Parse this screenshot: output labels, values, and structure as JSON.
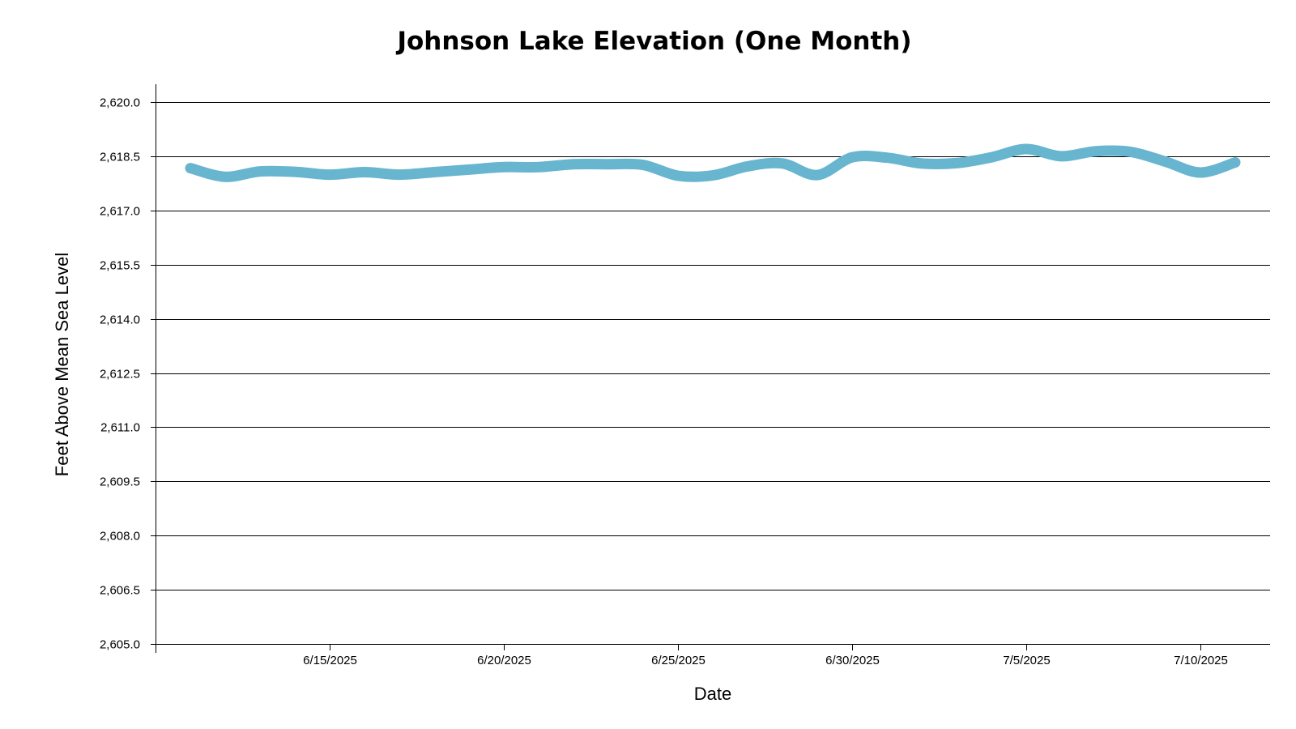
{
  "chart_data": {
    "type": "line",
    "title": "Johnson Lake Elevation (One Month)",
    "xlabel": "Date",
    "ylabel": "Feet Above Mean Sea Level",
    "ylim": [
      2605.0,
      2620.0
    ],
    "y_ticks": [
      "2,605.0",
      "2,606.5",
      "2,608.0",
      "2,609.5",
      "2,611.0",
      "2,612.5",
      "2,614.0",
      "2,615.5",
      "2,617.0",
      "2,618.5",
      "2,620.0"
    ],
    "xlim": [
      "2025-06-10",
      "2025-07-12"
    ],
    "x_ticks": [
      {
        "date": "2025-06-15",
        "label": "6/15/2025"
      },
      {
        "date": "2025-06-20",
        "label": "6/20/2025"
      },
      {
        "date": "2025-06-25",
        "label": "6/25/2025"
      },
      {
        "date": "2025-06-30",
        "label": "6/30/2025"
      },
      {
        "date": "2025-07-05",
        "label": "7/5/2025"
      },
      {
        "date": "2025-07-10",
        "label": "7/10/2025"
      }
    ],
    "grid": true,
    "line_color": "#67b5cf",
    "series": [
      {
        "x": [
          "2025-06-11",
          "2025-06-12",
          "2025-06-13",
          "2025-06-14",
          "2025-06-15",
          "2025-06-16",
          "2025-06-17",
          "2025-06-18",
          "2025-06-19",
          "2025-06-20",
          "2025-06-21",
          "2025-06-22",
          "2025-06-23",
          "2025-06-24",
          "2025-06-25",
          "2025-06-26",
          "2025-06-27",
          "2025-06-28",
          "2025-06-29",
          "2025-06-30",
          "2025-07-01",
          "2025-07-02",
          "2025-07-03",
          "2025-07-04",
          "2025-07-05",
          "2025-07-06",
          "2025-07-07",
          "2025-07-08",
          "2025-07-09",
          "2025-07-10",
          "2025-07-11"
        ],
        "values": [
          2618.17,
          2617.93,
          2618.08,
          2618.07,
          2617.99,
          2618.06,
          2617.99,
          2618.06,
          2618.13,
          2618.2,
          2618.2,
          2618.28,
          2618.28,
          2618.26,
          2617.96,
          2617.97,
          2618.22,
          2618.3,
          2617.98,
          2618.47,
          2618.46,
          2618.3,
          2618.31,
          2618.47,
          2618.7,
          2618.5,
          2618.64,
          2618.62,
          2618.35,
          2618.05,
          2618.33
        ]
      }
    ]
  }
}
